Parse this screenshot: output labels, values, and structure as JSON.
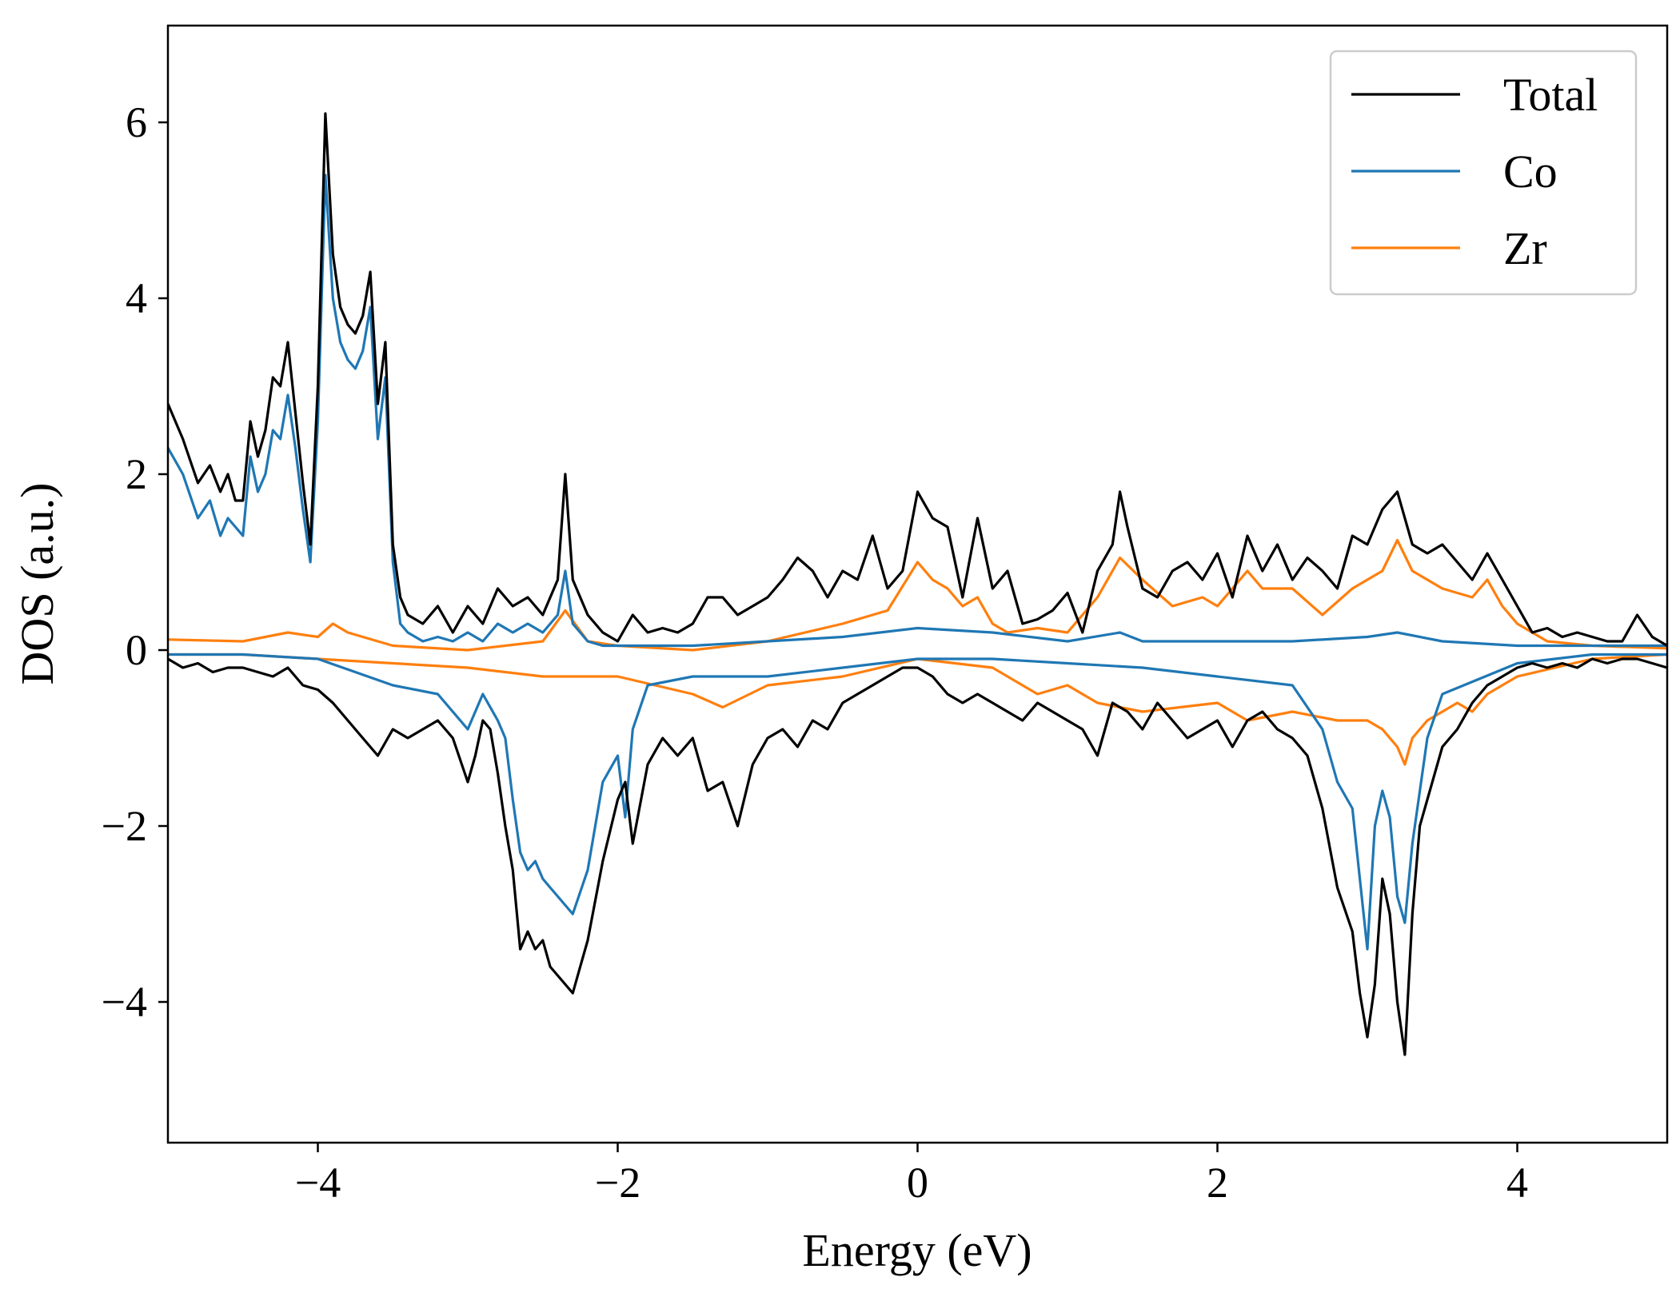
{
  "chart_data": {
    "type": "line",
    "title": "",
    "xlabel": "Energy (eV)",
    "ylabel": "DOS (a.u.)",
    "xlim": [
      -5,
      5
    ],
    "ylim": [
      -5.6,
      7.1
    ],
    "xticks": [
      -4,
      -2,
      0,
      2,
      4
    ],
    "yticks": [
      -4,
      -2,
      0,
      2,
      4,
      6
    ],
    "xtick_labels": [
      "−4",
      "−2",
      "0",
      "2",
      "4"
    ],
    "ytick_labels": [
      "−4",
      "−2",
      "0",
      "2",
      "4",
      "6"
    ],
    "grid": false,
    "legend_position": "top-right",
    "series": [
      {
        "name": "Total",
        "color": "#000000",
        "spin_up": {
          "x": [
            -5.0,
            -4.9,
            -4.8,
            -4.72,
            -4.65,
            -4.6,
            -4.55,
            -4.5,
            -4.45,
            -4.4,
            -4.35,
            -4.3,
            -4.25,
            -4.2,
            -4.15,
            -4.1,
            -4.05,
            -4.0,
            -3.95,
            -3.9,
            -3.85,
            -3.8,
            -3.75,
            -3.7,
            -3.65,
            -3.6,
            -3.55,
            -3.5,
            -3.45,
            -3.4,
            -3.3,
            -3.2,
            -3.1,
            -3.0,
            -2.9,
            -2.8,
            -2.7,
            -2.6,
            -2.5,
            -2.4,
            -2.35,
            -2.3,
            -2.2,
            -2.1,
            -2.0,
            -1.9,
            -1.8,
            -1.7,
            -1.6,
            -1.5,
            -1.4,
            -1.3,
            -1.2,
            -1.1,
            -1.0,
            -0.9,
            -0.8,
            -0.7,
            -0.6,
            -0.5,
            -0.4,
            -0.3,
            -0.2,
            -0.1,
            0.0,
            0.1,
            0.2,
            0.3,
            0.4,
            0.5,
            0.6,
            0.7,
            0.8,
            0.9,
            1.0,
            1.1,
            1.2,
            1.3,
            1.35,
            1.4,
            1.5,
            1.6,
            1.7,
            1.8,
            1.9,
            2.0,
            2.1,
            2.2,
            2.3,
            2.4,
            2.5,
            2.6,
            2.7,
            2.8,
            2.9,
            3.0,
            3.1,
            3.2,
            3.3,
            3.4,
            3.5,
            3.6,
            3.7,
            3.8,
            3.9,
            4.0,
            4.1,
            4.2,
            4.3,
            4.4,
            4.5,
            4.6,
            4.7,
            4.8,
            4.9,
            5.0
          ],
          "y": [
            2.8,
            2.4,
            1.9,
            2.1,
            1.8,
            2.0,
            1.7,
            1.7,
            2.6,
            2.2,
            2.5,
            3.1,
            3.0,
            3.5,
            2.7,
            1.9,
            1.2,
            3.0,
            6.1,
            4.5,
            3.9,
            3.7,
            3.6,
            3.8,
            4.3,
            2.8,
            3.5,
            1.2,
            0.6,
            0.4,
            0.3,
            0.5,
            0.2,
            0.5,
            0.3,
            0.7,
            0.5,
            0.6,
            0.4,
            0.8,
            2.0,
            0.8,
            0.4,
            0.2,
            0.1,
            0.4,
            0.2,
            0.25,
            0.2,
            0.3,
            0.6,
            0.6,
            0.4,
            0.5,
            0.6,
            0.8,
            1.05,
            0.9,
            0.6,
            0.9,
            0.8,
            1.3,
            0.7,
            0.9,
            1.8,
            1.5,
            1.4,
            0.6,
            1.5,
            0.7,
            0.9,
            0.3,
            0.35,
            0.45,
            0.65,
            0.2,
            0.9,
            1.2,
            1.8,
            1.4,
            0.7,
            0.6,
            0.9,
            1.0,
            0.8,
            1.1,
            0.6,
            1.3,
            0.9,
            1.2,
            0.8,
            1.05,
            0.9,
            0.7,
            1.3,
            1.2,
            1.6,
            1.8,
            1.2,
            1.1,
            1.2,
            1.0,
            0.8,
            1.1,
            0.8,
            0.5,
            0.2,
            0.25,
            0.15,
            0.2,
            0.15,
            0.1,
            0.1,
            0.4,
            0.15,
            0.05
          ]
        },
        "spin_down": {
          "x": [
            -5.0,
            -4.9,
            -4.8,
            -4.7,
            -4.6,
            -4.5,
            -4.4,
            -4.3,
            -4.2,
            -4.1,
            -4.0,
            -3.9,
            -3.8,
            -3.7,
            -3.6,
            -3.5,
            -3.4,
            -3.3,
            -3.2,
            -3.1,
            -3.0,
            -2.95,
            -2.9,
            -2.85,
            -2.8,
            -2.75,
            -2.7,
            -2.65,
            -2.6,
            -2.55,
            -2.5,
            -2.45,
            -2.4,
            -2.35,
            -2.3,
            -2.25,
            -2.2,
            -2.1,
            -2.0,
            -1.95,
            -1.9,
            -1.8,
            -1.7,
            -1.6,
            -1.5,
            -1.4,
            -1.3,
            -1.2,
            -1.1,
            -1.0,
            -0.9,
            -0.8,
            -0.7,
            -0.6,
            -0.5,
            -0.4,
            -0.3,
            -0.2,
            -0.1,
            0.0,
            0.1,
            0.2,
            0.3,
            0.4,
            0.5,
            0.6,
            0.7,
            0.8,
            0.9,
            1.0,
            1.1,
            1.2,
            1.3,
            1.4,
            1.5,
            1.6,
            1.7,
            1.8,
            1.9,
            2.0,
            2.1,
            2.2,
            2.3,
            2.4,
            2.5,
            2.6,
            2.7,
            2.8,
            2.9,
            2.95,
            3.0,
            3.05,
            3.1,
            3.15,
            3.2,
            3.25,
            3.3,
            3.35,
            3.4,
            3.5,
            3.6,
            3.7,
            3.8,
            3.9,
            4.0,
            4.1,
            4.2,
            4.3,
            4.4,
            4.5,
            4.6,
            4.7,
            4.8,
            4.9,
            5.0
          ],
          "y": [
            -0.1,
            -0.2,
            -0.15,
            -0.25,
            -0.2,
            -0.2,
            -0.25,
            -0.3,
            -0.2,
            -0.4,
            -0.45,
            -0.6,
            -0.8,
            -1.0,
            -1.2,
            -0.9,
            -1.0,
            -0.9,
            -0.8,
            -1.0,
            -1.5,
            -1.2,
            -0.8,
            -0.9,
            -1.4,
            -2.0,
            -2.5,
            -3.4,
            -3.2,
            -3.4,
            -3.3,
            -3.6,
            -3.7,
            -3.8,
            -3.9,
            -3.6,
            -3.3,
            -2.4,
            -1.7,
            -1.5,
            -2.2,
            -1.3,
            -1.0,
            -1.2,
            -1.0,
            -1.6,
            -1.5,
            -2.0,
            -1.3,
            -1.0,
            -0.9,
            -1.1,
            -0.8,
            -0.9,
            -0.6,
            -0.5,
            -0.4,
            -0.3,
            -0.2,
            -0.2,
            -0.3,
            -0.5,
            -0.6,
            -0.5,
            -0.6,
            -0.7,
            -0.8,
            -0.6,
            -0.7,
            -0.8,
            -0.9,
            -1.2,
            -0.6,
            -0.7,
            -0.9,
            -0.6,
            -0.8,
            -1.0,
            -0.9,
            -0.8,
            -1.1,
            -0.8,
            -0.7,
            -0.9,
            -1.0,
            -1.2,
            -1.8,
            -2.7,
            -3.2,
            -3.9,
            -4.4,
            -3.8,
            -2.6,
            -3.0,
            -4.0,
            -4.6,
            -3.0,
            -2.0,
            -1.7,
            -1.1,
            -0.9,
            -0.6,
            -0.4,
            -0.3,
            -0.2,
            -0.15,
            -0.2,
            -0.15,
            -0.2,
            -0.1,
            -0.15,
            -0.1,
            -0.1,
            -0.15,
            -0.2
          ]
        }
      },
      {
        "name": "Co",
        "color": "#1f77b4",
        "spin_up": {
          "x": [
            -5.0,
            -4.9,
            -4.8,
            -4.72,
            -4.65,
            -4.6,
            -4.55,
            -4.5,
            -4.45,
            -4.4,
            -4.35,
            -4.3,
            -4.25,
            -4.2,
            -4.15,
            -4.1,
            -4.05,
            -4.0,
            -3.95,
            -3.9,
            -3.85,
            -3.8,
            -3.75,
            -3.7,
            -3.65,
            -3.6,
            -3.55,
            -3.5,
            -3.45,
            -3.4,
            -3.3,
            -3.2,
            -3.1,
            -3.0,
            -2.9,
            -2.8,
            -2.7,
            -2.6,
            -2.5,
            -2.4,
            -2.35,
            -2.3,
            -2.2,
            -2.1,
            -2.0,
            -1.5,
            -1.0,
            -0.5,
            0.0,
            0.5,
            1.0,
            1.35,
            1.5,
            2.0,
            2.5,
            3.0,
            3.2,
            3.5,
            4.0,
            4.5,
            5.0
          ],
          "y": [
            2.3,
            2.0,
            1.5,
            1.7,
            1.3,
            1.5,
            1.4,
            1.3,
            2.2,
            1.8,
            2.0,
            2.5,
            2.4,
            2.9,
            2.3,
            1.6,
            1.0,
            2.6,
            5.4,
            4.0,
            3.5,
            3.3,
            3.2,
            3.4,
            3.9,
            2.4,
            3.1,
            1.0,
            0.3,
            0.2,
            0.1,
            0.15,
            0.1,
            0.2,
            0.1,
            0.3,
            0.2,
            0.3,
            0.2,
            0.4,
            0.9,
            0.3,
            0.1,
            0.05,
            0.05,
            0.05,
            0.1,
            0.15,
            0.25,
            0.2,
            0.1,
            0.2,
            0.1,
            0.1,
            0.1,
            0.15,
            0.2,
            0.1,
            0.05,
            0.05,
            0.05
          ]
        },
        "spin_down": {
          "x": [
            -5.0,
            -4.5,
            -4.0,
            -3.5,
            -3.2,
            -3.0,
            -2.9,
            -2.8,
            -2.75,
            -2.7,
            -2.65,
            -2.6,
            -2.55,
            -2.5,
            -2.45,
            -2.4,
            -2.35,
            -2.3,
            -2.2,
            -2.1,
            -2.0,
            -1.95,
            -1.9,
            -1.8,
            -1.5,
            -1.0,
            -0.5,
            0.0,
            0.5,
            1.0,
            1.5,
            2.0,
            2.5,
            2.7,
            2.8,
            2.9,
            2.95,
            3.0,
            3.05,
            3.1,
            3.15,
            3.2,
            3.25,
            3.3,
            3.4,
            3.5,
            4.0,
            4.5,
            5.0
          ],
          "y": [
            -0.05,
            -0.05,
            -0.1,
            -0.4,
            -0.5,
            -0.9,
            -0.5,
            -0.8,
            -1.0,
            -1.7,
            -2.3,
            -2.5,
            -2.4,
            -2.6,
            -2.7,
            -2.8,
            -2.9,
            -3.0,
            -2.5,
            -1.5,
            -1.2,
            -1.9,
            -0.9,
            -0.4,
            -0.3,
            -0.3,
            -0.2,
            -0.1,
            -0.1,
            -0.15,
            -0.2,
            -0.3,
            -0.4,
            -0.9,
            -1.5,
            -1.8,
            -2.6,
            -3.4,
            -2.0,
            -1.6,
            -1.9,
            -2.8,
            -3.1,
            -2.2,
            -1.0,
            -0.5,
            -0.15,
            -0.05,
            -0.05
          ]
        }
      },
      {
        "name": "Zr",
        "color": "#ff7f0e",
        "spin_up": {
          "x": [
            -5.0,
            -4.5,
            -4.2,
            -4.0,
            -3.9,
            -3.8,
            -3.5,
            -3.0,
            -2.5,
            -2.35,
            -2.2,
            -2.0,
            -1.5,
            -1.0,
            -0.5,
            -0.2,
            0.0,
            0.1,
            0.2,
            0.3,
            0.4,
            0.5,
            0.6,
            0.8,
            1.0,
            1.2,
            1.35,
            1.5,
            1.7,
            1.9,
            2.0,
            2.2,
            2.3,
            2.5,
            2.7,
            2.9,
            3.0,
            3.1,
            3.2,
            3.3,
            3.5,
            3.7,
            3.8,
            3.9,
            4.0,
            4.2,
            4.5,
            5.0
          ],
          "y": [
            0.12,
            0.1,
            0.2,
            0.15,
            0.3,
            0.2,
            0.05,
            0.0,
            0.1,
            0.45,
            0.1,
            0.05,
            0.0,
            0.1,
            0.3,
            0.45,
            1.0,
            0.8,
            0.7,
            0.5,
            0.6,
            0.3,
            0.2,
            0.25,
            0.2,
            0.6,
            1.05,
            0.8,
            0.5,
            0.6,
            0.5,
            0.9,
            0.7,
            0.7,
            0.4,
            0.7,
            0.8,
            0.9,
            1.25,
            0.9,
            0.7,
            0.6,
            0.8,
            0.5,
            0.3,
            0.1,
            0.05,
            0.02
          ]
        },
        "spin_down": {
          "x": [
            -5.0,
            -4.5,
            -4.0,
            -3.5,
            -3.0,
            -2.5,
            -2.0,
            -1.5,
            -1.3,
            -1.0,
            -0.5,
            0.0,
            0.5,
            0.8,
            1.0,
            1.2,
            1.5,
            2.0,
            2.2,
            2.5,
            2.8,
            3.0,
            3.1,
            3.2,
            3.25,
            3.3,
            3.4,
            3.5,
            3.6,
            3.7,
            3.8,
            4.0,
            4.5,
            5.0
          ],
          "y": [
            -0.05,
            -0.05,
            -0.1,
            -0.15,
            -0.2,
            -0.3,
            -0.3,
            -0.5,
            -0.65,
            -0.4,
            -0.3,
            -0.1,
            -0.2,
            -0.5,
            -0.4,
            -0.6,
            -0.7,
            -0.6,
            -0.8,
            -0.7,
            -0.8,
            -0.8,
            -0.9,
            -1.1,
            -1.3,
            -1.0,
            -0.8,
            -0.7,
            -0.6,
            -0.7,
            -0.5,
            -0.3,
            -0.1,
            -0.05
          ]
        }
      }
    ]
  }
}
